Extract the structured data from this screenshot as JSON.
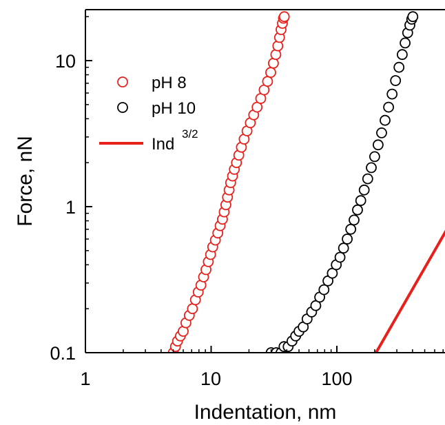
{
  "chart_data": {
    "type": "scatter",
    "xscale": "log",
    "yscale": "log",
    "xlim": [
      1,
      800
    ],
    "ylim": [
      0.1,
      22
    ],
    "xlabel": "Indentation, nm",
    "ylabel": "Force, nN",
    "xticks": [
      {
        "value": 1,
        "label": "1"
      },
      {
        "value": 10,
        "label": "10"
      },
      {
        "value": 100,
        "label": "100"
      }
    ],
    "yticks": [
      {
        "value": 0.1,
        "label": "0.1"
      },
      {
        "value": 1,
        "label": "1"
      },
      {
        "value": 10,
        "label": "10"
      }
    ],
    "legend_position": "top-left",
    "series": [
      {
        "name": "pH 8",
        "marker": "open-circle",
        "color": "#e8201a",
        "points": [
          [
            5.0,
            0.1
          ],
          [
            5.2,
            0.11
          ],
          [
            5.4,
            0.12
          ],
          [
            5.7,
            0.13
          ],
          [
            6.0,
            0.14
          ],
          [
            6.3,
            0.16
          ],
          [
            6.7,
            0.18
          ],
          [
            7.1,
            0.2
          ],
          [
            7.5,
            0.23
          ],
          [
            7.9,
            0.26
          ],
          [
            8.3,
            0.29
          ],
          [
            8.7,
            0.33
          ],
          [
            9.1,
            0.37
          ],
          [
            9.5,
            0.42
          ],
          [
            9.9,
            0.47
          ],
          [
            10.3,
            0.53
          ],
          [
            10.8,
            0.59
          ],
          [
            11.3,
            0.66
          ],
          [
            11.8,
            0.74
          ],
          [
            12.3,
            0.82
          ],
          [
            12.7,
            0.92
          ],
          [
            13.1,
            1.03
          ],
          [
            13.5,
            1.16
          ],
          [
            13.9,
            1.3
          ],
          [
            14.3,
            1.46
          ],
          [
            14.8,
            1.62
          ],
          [
            15.3,
            1.8
          ],
          [
            15.9,
            2.0
          ],
          [
            16.6,
            2.25
          ],
          [
            17.4,
            2.55
          ],
          [
            18.3,
            2.9
          ],
          [
            19.3,
            3.3
          ],
          [
            20.5,
            3.75
          ],
          [
            21.8,
            4.25
          ],
          [
            23.2,
            4.8
          ],
          [
            24.8,
            5.5
          ],
          [
            26.4,
            6.3
          ],
          [
            28.1,
            7.2
          ],
          [
            29.8,
            8.3
          ],
          [
            31.3,
            9.6
          ],
          [
            32.7,
            11.0
          ],
          [
            33.9,
            12.6
          ],
          [
            35.0,
            14.4
          ],
          [
            36.0,
            16.3
          ],
          [
            36.9,
            18.0
          ],
          [
            37.6,
            19.5
          ],
          [
            38.2,
            20.0
          ]
        ]
      },
      {
        "name": "pH 10",
        "marker": "open-circle",
        "color": "#000000",
        "points": [
          [
            30.0,
            0.1
          ],
          [
            33.0,
            0.1
          ],
          [
            36.0,
            0.1
          ],
          [
            38.0,
            0.11
          ],
          [
            41.0,
            0.11
          ],
          [
            44.0,
            0.12
          ],
          [
            47.0,
            0.13
          ],
          [
            50.0,
            0.14
          ],
          [
            54.0,
            0.15
          ],
          [
            58.0,
            0.17
          ],
          [
            63.0,
            0.19
          ],
          [
            68.0,
            0.21
          ],
          [
            73.0,
            0.24
          ],
          [
            79.0,
            0.27
          ],
          [
            85.0,
            0.31
          ],
          [
            92.0,
            0.35
          ],
          [
            99.0,
            0.4
          ],
          [
            106.0,
            0.45
          ],
          [
            113.0,
            0.52
          ],
          [
            121.0,
            0.6
          ],
          [
            129.0,
            0.7
          ],
          [
            137.0,
            0.81
          ],
          [
            146.0,
            0.95
          ],
          [
            155.0,
            1.1
          ],
          [
            165.0,
            1.3
          ],
          [
            176.0,
            1.55
          ],
          [
            188.0,
            1.85
          ],
          [
            200.0,
            2.2
          ],
          [
            213.0,
            2.65
          ],
          [
            227.0,
            3.2
          ],
          [
            242.0,
            3.9
          ],
          [
            258.0,
            4.8
          ],
          [
            275.0,
            5.9
          ],
          [
            293.0,
            7.3
          ],
          [
            312.0,
            9.0
          ],
          [
            331.0,
            11.0
          ],
          [
            349.0,
            13.2
          ],
          [
            366.0,
            15.5
          ],
          [
            381.0,
            17.5
          ],
          [
            394.0,
            19.2
          ],
          [
            402.0,
            20.0
          ]
        ]
      },
      {
        "name": "Ind",
        "name_superscript": "3/2",
        "marker": "line",
        "color": "#e8201a",
        "points": [
          [
            205.0,
            0.1
          ],
          [
            800.0,
            0.77
          ]
        ]
      }
    ]
  }
}
